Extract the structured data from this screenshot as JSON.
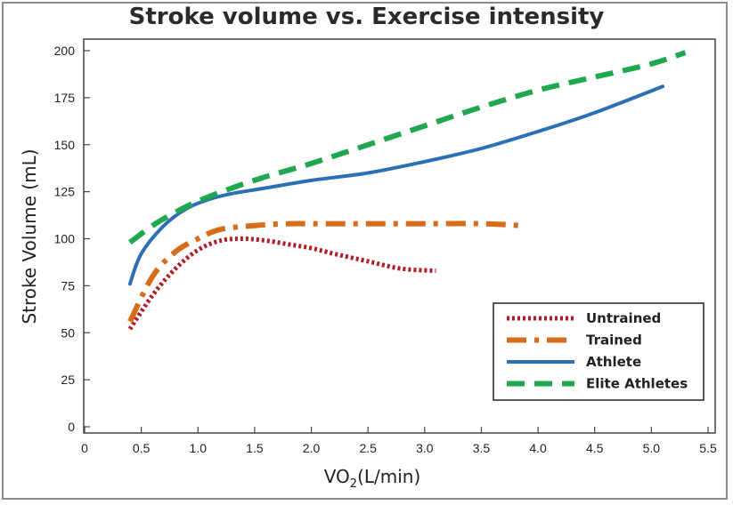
{
  "chart_data": {
    "type": "line",
    "title": "Stroke volume vs. Exercise intensity",
    "xlabel": {
      "main": "VO",
      "sub": "2",
      "unit": "(L/min)"
    },
    "ylabel": "Stroke Volume (mL)",
    "xlim": [
      0,
      5.5
    ],
    "ylim": [
      0,
      200
    ],
    "x_ticks": [
      "0",
      "0.5",
      "1.0",
      "1.5",
      "2.0",
      "2.5",
      "3.0",
      "3.5",
      "4.0",
      "4.5",
      "5.0",
      "5.5"
    ],
    "y_ticks": [
      "0",
      "25",
      "50",
      "75",
      "100",
      "125",
      "150",
      "175",
      "200"
    ],
    "grid": false,
    "legend_position": "bottom-right",
    "series": [
      {
        "name": "Untrained",
        "color": "#b01c24",
        "style": "dotted",
        "x": [
          0.4,
          0.6,
          0.8,
          1.0,
          1.2,
          1.4,
          1.6,
          1.8,
          2.0,
          2.2,
          2.5,
          2.8,
          3.1
        ],
        "y": [
          52,
          70,
          84,
          94,
          99,
          100,
          99,
          97,
          95,
          92,
          88,
          84,
          83
        ]
      },
      {
        "name": "Trained",
        "color": "#d96c1a",
        "style": "dashdot",
        "x": [
          0.4,
          0.6,
          0.8,
          1.0,
          1.2,
          1.5,
          1.8,
          2.0,
          2.5,
          3.0,
          3.5,
          3.85
        ],
        "y": [
          56,
          80,
          93,
          100,
          105,
          107,
          108,
          108,
          108,
          108,
          108,
          107
        ]
      },
      {
        "name": "Athlete",
        "color": "#2b6fb5",
        "style": "solid",
        "x": [
          0.4,
          0.5,
          0.7,
          0.9,
          1.1,
          1.3,
          1.6,
          2.0,
          2.5,
          3.0,
          3.5,
          4.0,
          4.5,
          5.1
        ],
        "y": [
          76,
          92,
          107,
          116,
          121,
          124,
          127,
          131,
          135,
          141,
          148,
          157,
          167,
          181
        ]
      },
      {
        "name": "Elite Athletes",
        "color": "#1fa84f",
        "style": "dashed",
        "x": [
          0.4,
          0.6,
          0.8,
          1.0,
          1.3,
          1.6,
          2.0,
          2.5,
          3.0,
          3.5,
          4.0,
          4.5,
          5.0,
          5.3
        ],
        "y": [
          98,
          107,
          114,
          120,
          127,
          133,
          140,
          150,
          160,
          170,
          179,
          186,
          193,
          199
        ]
      }
    ]
  }
}
